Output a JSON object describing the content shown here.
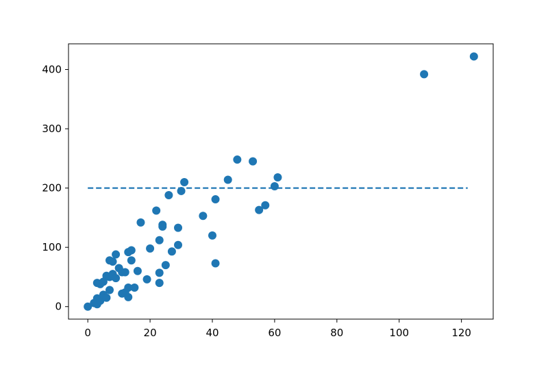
{
  "chart_data": {
    "type": "scatter",
    "title": "",
    "xlabel": "",
    "ylabel": "",
    "xlim": [
      -6.2,
      130.2
    ],
    "ylim": [
      -21.1,
      443.3
    ],
    "xticks": [
      0,
      20,
      40,
      60,
      80,
      100,
      120
    ],
    "yticks": [
      0,
      100,
      200,
      300,
      400
    ],
    "grid": false,
    "marker_color": "#1f77b4",
    "line_color": "#1f77b4",
    "reference_line": {
      "style": "dashed",
      "x": [
        0,
        122
      ],
      "y": [
        200,
        200
      ]
    },
    "points": [
      [
        0,
        0
      ],
      [
        2,
        6
      ],
      [
        3,
        14
      ],
      [
        3,
        4
      ],
      [
        3,
        40
      ],
      [
        4,
        38
      ],
      [
        4,
        10
      ],
      [
        5,
        42
      ],
      [
        5,
        20
      ],
      [
        6,
        52
      ],
      [
        6,
        15
      ],
      [
        7,
        78
      ],
      [
        7,
        28
      ],
      [
        7,
        50
      ],
      [
        8,
        76
      ],
      [
        8,
        55
      ],
      [
        9,
        88
      ],
      [
        9,
        48
      ],
      [
        10,
        65
      ],
      [
        11,
        58
      ],
      [
        11,
        22
      ],
      [
        12,
        58
      ],
      [
        12,
        24
      ],
      [
        13,
        92
      ],
      [
        13,
        32
      ],
      [
        13,
        16
      ],
      [
        14,
        95
      ],
      [
        14,
        78
      ],
      [
        15,
        32
      ],
      [
        16,
        60
      ],
      [
        17,
        142
      ],
      [
        19,
        46
      ],
      [
        20,
        98
      ],
      [
        22,
        162
      ],
      [
        23,
        112
      ],
      [
        23,
        57
      ],
      [
        23,
        40
      ],
      [
        24,
        138
      ],
      [
        24,
        135
      ],
      [
        25,
        70
      ],
      [
        26,
        188
      ],
      [
        27,
        93
      ],
      [
        29,
        133
      ],
      [
        29,
        104
      ],
      [
        30,
        195
      ],
      [
        31,
        210
      ],
      [
        37,
        153
      ],
      [
        40,
        120
      ],
      [
        41,
        181
      ],
      [
        41,
        73
      ],
      [
        45,
        214
      ],
      [
        48,
        248
      ],
      [
        53,
        245
      ],
      [
        55,
        163
      ],
      [
        57,
        171
      ],
      [
        60,
        203
      ],
      [
        61,
        218
      ],
      [
        108,
        392
      ],
      [
        124,
        422
      ]
    ]
  }
}
